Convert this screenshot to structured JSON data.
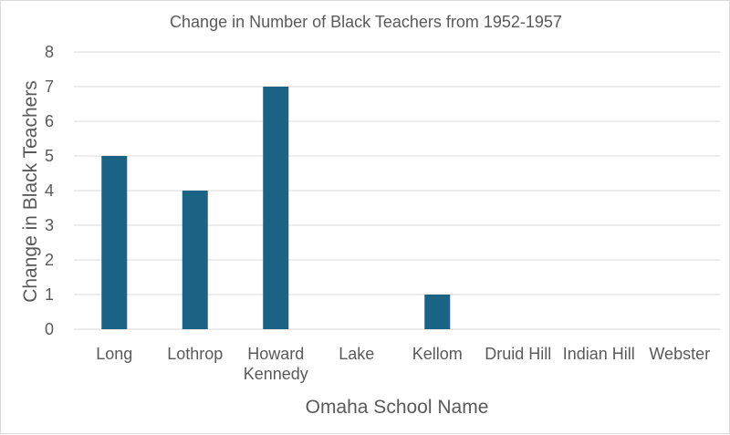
{
  "chart_data": {
    "type": "bar",
    "title": "Change in Number of Black Teachers from 1952-1957",
    "xlabel": "Omaha School Name",
    "ylabel": "Change in Black Teachers",
    "categories": [
      "Long",
      "Lothrop",
      "Howard Kennedy",
      "Lake",
      "Kellom",
      "Druid Hill",
      "Indian Hill",
      "Webster"
    ],
    "category_lines": [
      [
        "Long"
      ],
      [
        "Lothrop"
      ],
      [
        "Howard",
        "Kennedy"
      ],
      [
        "Lake"
      ],
      [
        "Kellom"
      ],
      [
        "Druid Hill"
      ],
      [
        "Indian Hill"
      ],
      [
        "Webster"
      ]
    ],
    "values": [
      5,
      4,
      7,
      0,
      1,
      0,
      0,
      0
    ],
    "ylim": [
      0,
      8
    ],
    "yticks": [
      "0",
      "1",
      "2",
      "3",
      "4",
      "5",
      "6",
      "7",
      "8"
    ],
    "grid": true,
    "legend": "none",
    "bar_color": "#1a6384"
  }
}
